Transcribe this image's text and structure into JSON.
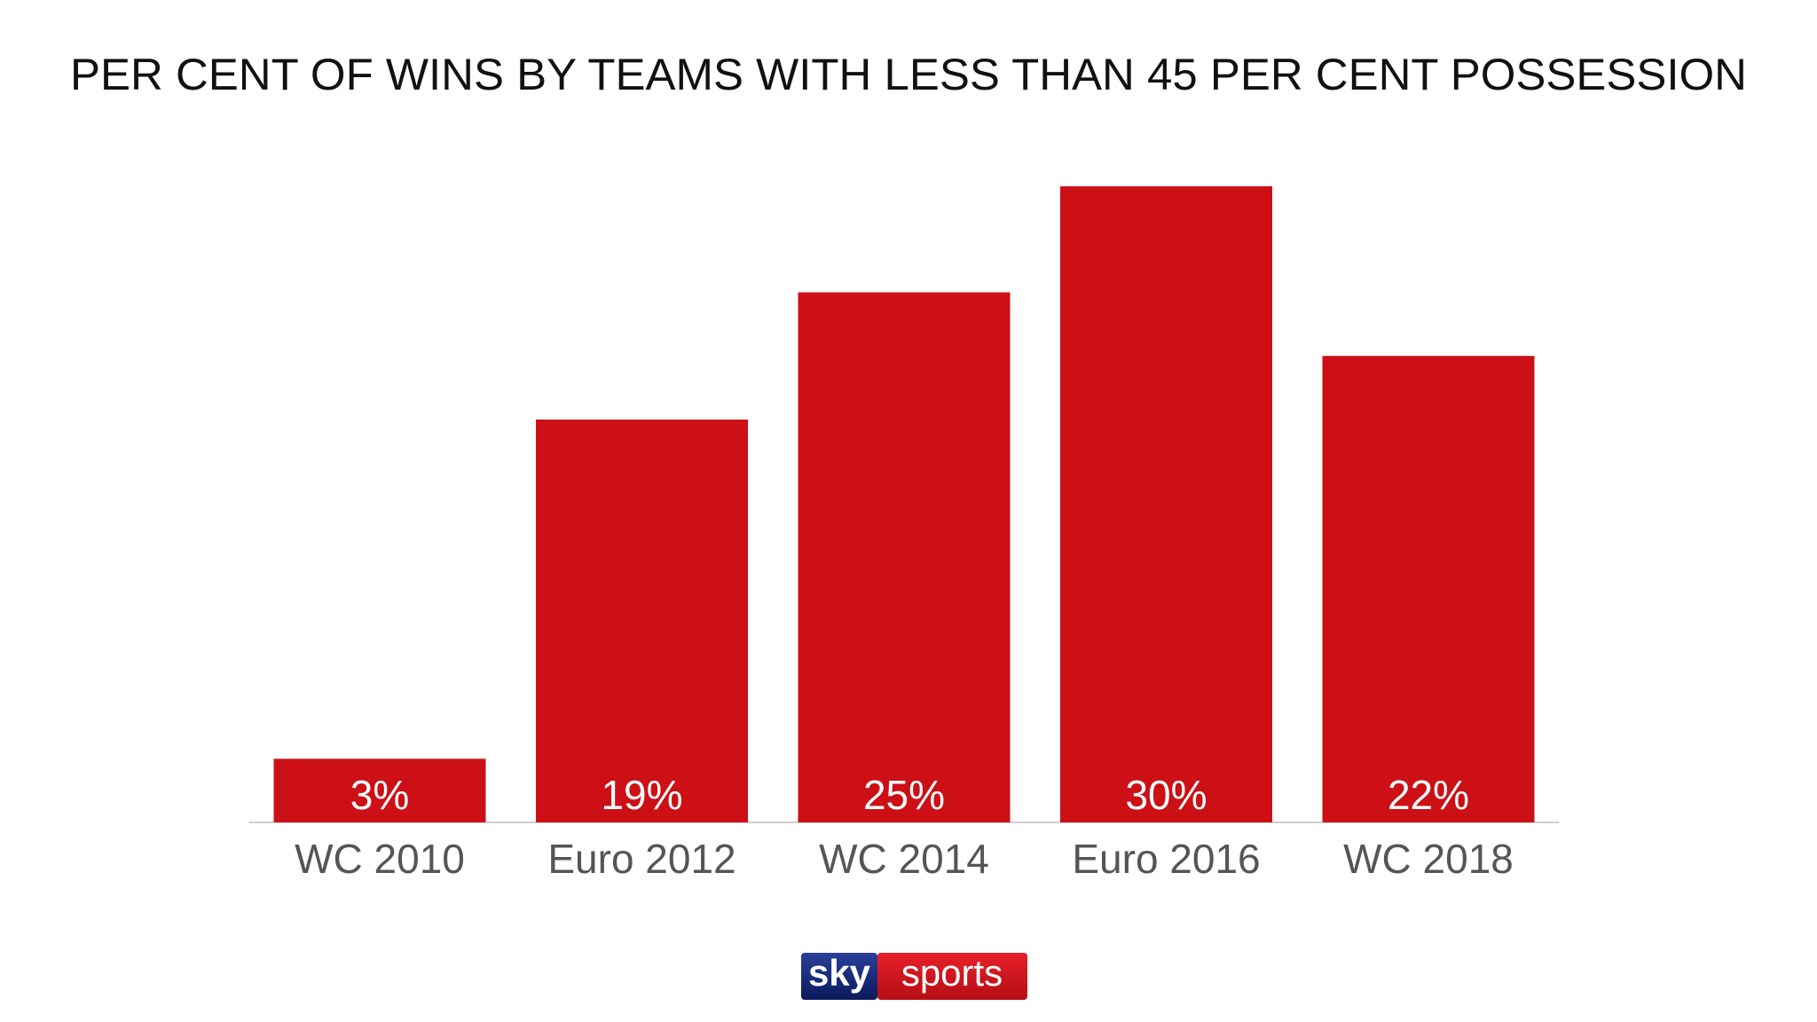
{
  "chart_data": {
    "type": "bar",
    "title": "PER CENT OF WINS BY TEAMS WITH LESS THAN 45 PER CENT POSSESSION",
    "categories": [
      "WC 2010",
      "Euro 2012",
      "WC 2014",
      "Euro 2016",
      "WC 2018"
    ],
    "values": [
      3,
      19,
      25,
      30,
      22
    ],
    "value_labels": [
      "3%",
      "19%",
      "25%",
      "30%",
      "22%"
    ],
    "color": "#cc1016"
  },
  "logo": {
    "left": "sky",
    "right": "sports"
  }
}
